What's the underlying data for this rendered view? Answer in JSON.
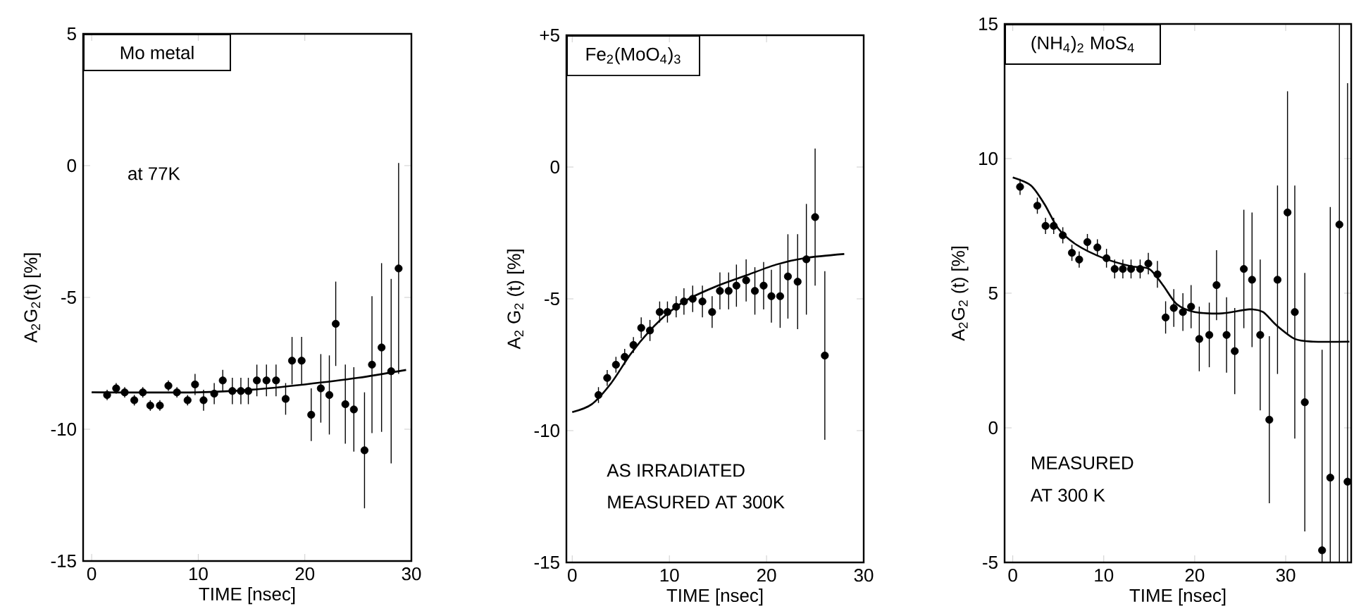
{
  "chart_data": [
    {
      "type": "scatter",
      "title": "Mo metal",
      "xlabel": "TIME [nsec]",
      "ylabel": "A$_{2}$G$_{2}$(t) [%]",
      "annotations": [
        "at 77K"
      ],
      "xlim": [
        -0.8,
        30
      ],
      "ylim": [
        -15,
        5
      ],
      "xticks": [
        0,
        10,
        20,
        30
      ],
      "yticks": [
        -15,
        -10,
        -5,
        0,
        5
      ],
      "series": [
        {
          "type": "scatter",
          "marker": "circle",
          "color": "#000000",
          "x": [
            1.45,
            2.3,
            3.1,
            4.0,
            4.8,
            5.5,
            6.4,
            7.2,
            8.0,
            9.0,
            9.7,
            10.5,
            11.5,
            12.3,
            13.2,
            14.0,
            14.7,
            15.5,
            16.4,
            17.3,
            18.2,
            18.8,
            19.7,
            20.6,
            21.5,
            22.3,
            22.9,
            23.8,
            24.6,
            25.6,
            26.3,
            27.2,
            28.1,
            28.8
          ],
          "values": [
            -8.7,
            -8.45,
            -8.6,
            -8.9,
            -8.6,
            -9.1,
            -9.1,
            -8.35,
            -8.6,
            -8.9,
            -8.3,
            -8.9,
            -8.65,
            -8.15,
            -8.55,
            -8.55,
            -8.55,
            -8.15,
            -8.15,
            -8.15,
            -8.85,
            -7.4,
            -7.4,
            -9.45,
            -8.45,
            -8.7,
            -6.0,
            -9.05,
            -9.25,
            -10.8,
            -7.55,
            -6.9,
            -7.8,
            -3.9
          ],
          "errors": [
            0.2,
            0.2,
            0.2,
            0.2,
            0.2,
            0.2,
            0.2,
            0.2,
            0.2,
            0.2,
            0.4,
            0.4,
            0.4,
            0.4,
            0.5,
            0.5,
            0.5,
            0.6,
            0.6,
            0.6,
            0.6,
            0.9,
            0.9,
            1.0,
            1.3,
            1.5,
            1.6,
            1.5,
            1.6,
            2.2,
            2.6,
            3.2,
            3.5,
            4.0
          ]
        },
        {
          "type": "line",
          "marker": "none",
          "color": "#000000",
          "x": [
            0,
            10,
            15,
            20,
            25,
            29.5
          ],
          "values": [
            -8.6,
            -8.6,
            -8.5,
            -8.3,
            -8.05,
            -7.75
          ]
        }
      ]
    },
    {
      "type": "scatter",
      "title": "Fe$_{2}$(MoO$_{4}$)$_{3}$",
      "xlabel": "TIME [nsec]",
      "ylabel": "A$_{2}$ G$_{2}$ (t) [%]",
      "annotations": [
        "AS IRRADIATED",
        "MEASURED AT 300K"
      ],
      "xlim": [
        -0.6,
        30
      ],
      "ylim": [
        -15,
        5
      ],
      "xticks": [
        0,
        10,
        20,
        30
      ],
      "yticks": [
        -15,
        -10,
        -5,
        0,
        {
          "value": 5,
          "label": "+5"
        }
      ],
      "series": [
        {
          "type": "scatter",
          "marker": "circle",
          "color": "#000000",
          "x": [
            2.7,
            3.6,
            4.5,
            5.4,
            6.3,
            7.1,
            8.0,
            9.0,
            9.8,
            10.7,
            11.5,
            12.4,
            13.4,
            14.4,
            15.2,
            16.1,
            16.9,
            17.9,
            18.8,
            19.7,
            20.5,
            21.4,
            22.2,
            23.2,
            24.1,
            25.0,
            26.0
          ],
          "values": [
            -8.65,
            -8.0,
            -7.5,
            -7.2,
            -6.75,
            -6.1,
            -6.2,
            -5.5,
            -5.5,
            -5.3,
            -5.1,
            -5.0,
            -5.1,
            -5.5,
            -4.7,
            -4.7,
            -4.5,
            -4.3,
            -4.7,
            -4.5,
            -4.9,
            -4.9,
            -4.15,
            -4.35,
            -3.5,
            -1.9,
            -7.15
          ],
          "errors": [
            0.3,
            0.3,
            0.3,
            0.3,
            0.3,
            0.4,
            0.4,
            0.4,
            0.4,
            0.4,
            0.5,
            0.5,
            0.6,
            0.6,
            0.7,
            0.7,
            0.8,
            0.8,
            0.9,
            0.9,
            1.0,
            1.2,
            1.6,
            1.8,
            2.1,
            2.6,
            3.2
          ]
        },
        {
          "type": "line",
          "marker": "none",
          "color": "#000000",
          "x": [
            0,
            2,
            4,
            6,
            8,
            10,
            12,
            15,
            18,
            21,
            24,
            28
          ],
          "values": [
            -9.3,
            -9.0,
            -8.2,
            -7.1,
            -6.2,
            -5.5,
            -5.0,
            -4.5,
            -4.1,
            -3.7,
            -3.45,
            -3.3
          ]
        }
      ]
    },
    {
      "type": "scatter",
      "title": "(NH$_{4}$)$_{2}$ MoS$_{4}$",
      "xlabel": "TIME [nsec]",
      "ylabel": "A$_{2}$G$_{2}$ (t) [%]",
      "annotations": [
        "MEASURED",
        "AT 300 K"
      ],
      "xlim": [
        -0.9,
        37.2
      ],
      "ylim": [
        -5,
        15
      ],
      "xticks": [
        0,
        10,
        20,
        30
      ],
      "yticks": [
        -5,
        0,
        5,
        10,
        15
      ],
      "series": [
        {
          "type": "scatter",
          "marker": "circle",
          "color": "#000000",
          "x": [
            0.8,
            2.7,
            3.6,
            4.5,
            5.5,
            6.5,
            7.3,
            8.2,
            9.3,
            10.3,
            11.2,
            12.1,
            13.0,
            14.0,
            14.9,
            15.9,
            16.8,
            17.7,
            18.7,
            19.6,
            20.5,
            21.6,
            22.4,
            23.5,
            24.4,
            25.4,
            26.3,
            27.2,
            28.2,
            29.1,
            30.2,
            31.0,
            32.1,
            34.0,
            34.9,
            35.9,
            36.8
          ],
          "values": [
            8.95,
            8.25,
            7.5,
            7.5,
            7.15,
            6.5,
            6.25,
            6.9,
            6.7,
            6.3,
            5.9,
            5.9,
            5.9,
            5.9,
            6.1,
            5.7,
            4.1,
            4.45,
            4.3,
            4.5,
            3.3,
            3.45,
            5.3,
            3.45,
            2.85,
            5.9,
            5.5,
            3.45,
            0.3,
            5.5,
            8.0,
            4.3,
            0.95,
            -4.55,
            -1.85,
            7.55,
            -2.0
          ],
          "errors": [
            0.3,
            0.3,
            0.3,
            0.3,
            0.3,
            0.3,
            0.3,
            0.3,
            0.3,
            0.35,
            0.35,
            0.35,
            0.35,
            0.35,
            0.4,
            0.5,
            0.6,
            0.7,
            0.7,
            0.8,
            1.2,
            1.2,
            1.3,
            1.4,
            1.6,
            2.2,
            2.5,
            2.8,
            3.1,
            3.5,
            4.5,
            4.7,
            4.8,
            [
              -5,
              2.9
            ],
            [
              -5,
              8.2
            ],
            [
              -5,
              15
            ],
            [
              -5,
              12.8
            ]
          ]
        },
        {
          "type": "line",
          "marker": "none",
          "color": "#000000",
          "x": [
            0,
            2,
            3.5,
            5,
            7,
            10,
            13,
            15,
            16.5,
            18,
            20,
            23,
            26,
            27.5,
            29,
            31,
            33,
            37
          ],
          "values": [
            9.3,
            9.0,
            8.3,
            7.4,
            6.8,
            6.3,
            6.0,
            5.9,
            5.3,
            4.6,
            4.3,
            4.25,
            4.4,
            4.3,
            3.8,
            3.3,
            3.2,
            3.2
          ]
        }
      ]
    }
  ]
}
